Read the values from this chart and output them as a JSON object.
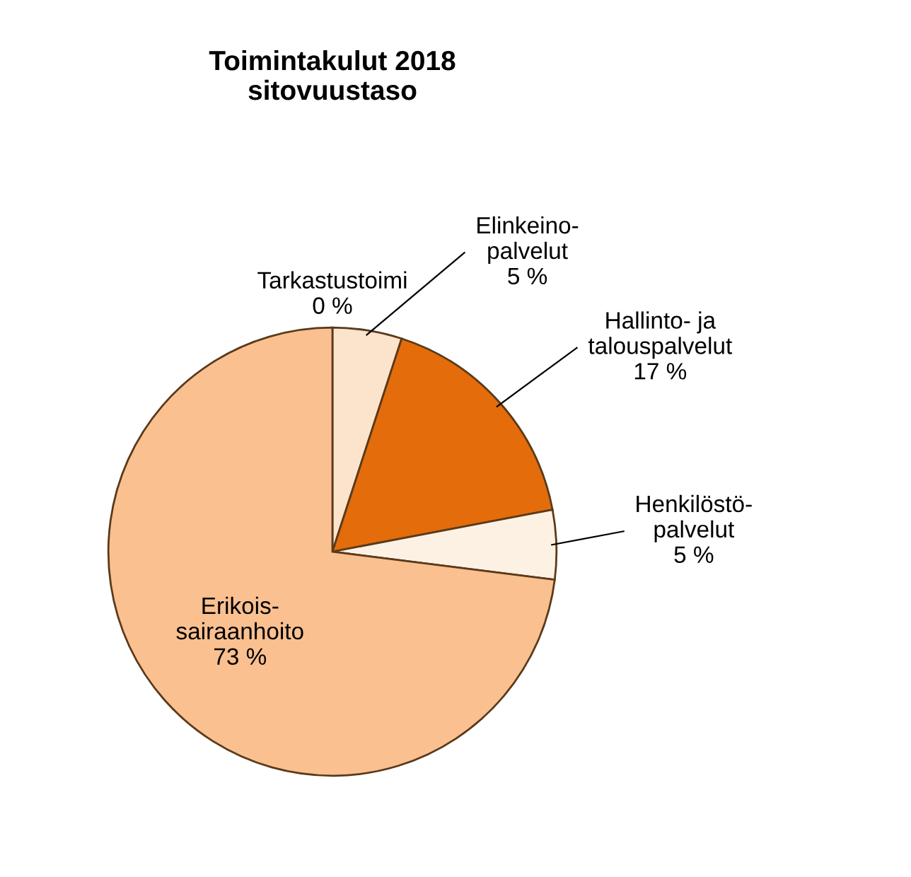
{
  "chart_data": {
    "type": "pie",
    "title": "Toimintakulut 2018\nsitovuustaso",
    "categories": [
      "Tarkastustoimi",
      "Elinkeino-\npalvelut",
      "Hallinto- ja\ntalouspalvelut",
      "Henkilöstö-\npalvelut",
      "Erikois-\nsairaanhoito"
    ],
    "values": [
      0,
      5,
      17,
      5,
      73
    ],
    "value_labels": [
      "0 %",
      "5 %",
      "17 %",
      "5 %",
      "73 %"
    ],
    "colors": [
      "#f4b183",
      "#fbe3cc",
      "#e46c0a",
      "#fdf1e4",
      "#fac090"
    ]
  }
}
